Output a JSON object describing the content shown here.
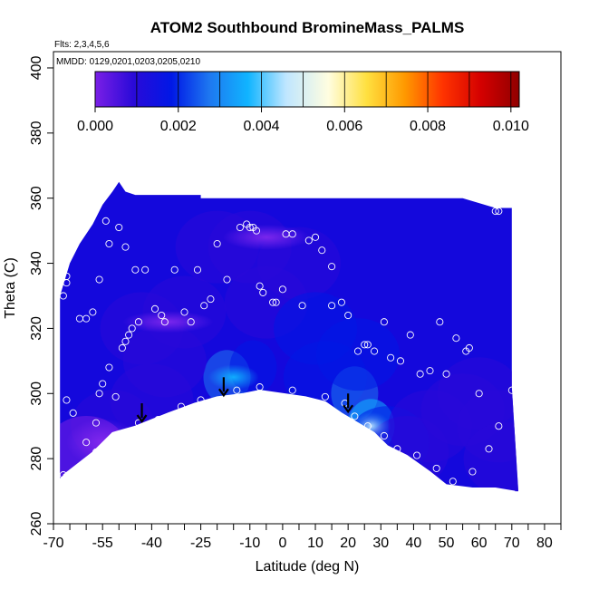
{
  "chart_data": {
    "type": "heatmap",
    "title": "ATOM2 Southbound BromineMass_PALMS",
    "flights_note": "Flts: 2,3,4,5,6",
    "dates_note": "MMDD: 0129,0201,0203,0205,0210",
    "xlabel": "Latitude (deg N)",
    "ylabel": "Theta (C)",
    "xlim": [
      -70,
      85
    ],
    "ylim": [
      260,
      405
    ],
    "x_ticks": [
      -70,
      -55,
      -40,
      -25,
      -10,
      0,
      10,
      20,
      30,
      40,
      50,
      60,
      70,
      80
    ],
    "y_ticks": [
      260,
      280,
      300,
      320,
      340,
      360,
      380,
      400
    ],
    "colorbar": {
      "min": 0.0,
      "max": 0.0102,
      "ticks": [
        0.0,
        0.002,
        0.004,
        0.006,
        0.008,
        0.01
      ],
      "tick_labels": [
        "0.000",
        "0.002",
        "0.004",
        "0.006",
        "0.008",
        "0.010"
      ],
      "colors": [
        "#7a1fe6",
        "#2a0ad8",
        "#0018e6",
        "#1e78f0",
        "#10b4ff",
        "#bfe6ff",
        "#fffde0",
        "#ffe040",
        "#ff9900",
        "#ff3300",
        "#d40000",
        "#900000"
      ]
    },
    "arrows_latitude": [
      -43,
      -18,
      20
    ],
    "ground_outline": [
      [
        -67,
        275
      ],
      [
        -58,
        282
      ],
      [
        -52,
        288
      ],
      [
        -45,
        290
      ],
      [
        -40,
        292
      ],
      [
        -35,
        294
      ],
      [
        -27,
        297
      ],
      [
        -20,
        299
      ],
      [
        -12,
        300
      ],
      [
        -7,
        301
      ],
      [
        0,
        300
      ],
      [
        7,
        299
      ],
      [
        13,
        297.5
      ],
      [
        18,
        294
      ],
      [
        23,
        291
      ],
      [
        28,
        288
      ],
      [
        32,
        284
      ],
      [
        38,
        281
      ],
      [
        45,
        276
      ],
      [
        50,
        272
      ],
      [
        58,
        271
      ],
      [
        65,
        271
      ],
      [
        71,
        270
      ]
    ],
    "cells": [
      {
        "lat": -52,
        "theta": 290,
        "value": 0.0006
      },
      {
        "lat": -60,
        "theta": 282,
        "value": 0.0004
      },
      {
        "lat": -43,
        "theta": 320,
        "value": 0.0006
      },
      {
        "lat": -30,
        "theta": 325,
        "value": 0.0008
      },
      {
        "lat": -20,
        "theta": 345,
        "value": 0.0007
      },
      {
        "lat": -10,
        "theta": 345,
        "value": 0.0005
      },
      {
        "lat": -5,
        "theta": 328,
        "value": 0.0006
      },
      {
        "lat": 5,
        "theta": 340,
        "value": 0.0006
      },
      {
        "lat": -17,
        "theta": 305,
        "value": 0.0028
      },
      {
        "lat": -9,
        "theta": 308,
        "value": 0.0022
      },
      {
        "lat": 10,
        "theta": 320,
        "value": 0.0016
      },
      {
        "lat": 13,
        "theta": 305,
        "value": 0.0014
      },
      {
        "lat": 22,
        "theta": 300,
        "value": 0.0024
      },
      {
        "lat": 27,
        "theta": 290,
        "value": 0.0038
      },
      {
        "lat": 32,
        "theta": 285,
        "value": 0.002
      },
      {
        "lat": 38,
        "theta": 282,
        "value": 0.0012
      },
      {
        "lat": 23,
        "theta": 312,
        "value": 0.0017
      },
      {
        "lat": -40,
        "theta": 298,
        "value": 0.0009
      },
      {
        "lat": -36,
        "theta": 310,
        "value": 0.001
      },
      {
        "lat": 45,
        "theta": 290,
        "value": 0.001
      },
      {
        "lat": 55,
        "theta": 295,
        "value": 0.0011
      },
      {
        "lat": 60,
        "theta": 300,
        "value": 0.0012
      },
      {
        "lat": 66,
        "theta": 290,
        "value": 0.001
      },
      {
        "lat": 68,
        "theta": 280,
        "value": 0.0009
      }
    ],
    "sample_points": [
      [
        -67,
        330
      ],
      [
        -66,
        336
      ],
      [
        -66,
        334
      ],
      [
        -62,
        323
      ],
      [
        -60,
        323
      ],
      [
        -58,
        325
      ],
      [
        -56,
        335
      ],
      [
        -54,
        353
      ],
      [
        -53,
        346
      ],
      [
        -50,
        351
      ],
      [
        -48,
        345
      ],
      [
        -45,
        338
      ],
      [
        -42,
        338
      ],
      [
        -39,
        326
      ],
      [
        -37,
        324
      ],
      [
        -36,
        322
      ],
      [
        -33,
        338
      ],
      [
        -30,
        325
      ],
      [
        -28,
        322
      ],
      [
        -26,
        338
      ],
      [
        -24,
        327
      ],
      [
        -22,
        329
      ],
      [
        -20,
        346
      ],
      [
        -17,
        335
      ],
      [
        -13,
        351
      ],
      [
        -11,
        352
      ],
      [
        -10,
        351
      ],
      [
        -9,
        351
      ],
      [
        -8,
        350
      ],
      [
        -7,
        333
      ],
      [
        -6,
        331
      ],
      [
        -3,
        328
      ],
      [
        0,
        332
      ],
      [
        -2,
        328
      ],
      [
        1,
        349
      ],
      [
        3,
        349
      ],
      [
        6,
        327
      ],
      [
        8,
        347
      ],
      [
        10,
        348
      ],
      [
        12,
        344
      ],
      [
        15,
        339
      ],
      [
        15,
        327
      ],
      [
        18,
        328
      ],
      [
        20,
        324
      ],
      [
        23,
        313
      ],
      [
        25,
        315
      ],
      [
        26,
        315
      ],
      [
        28,
        313
      ],
      [
        31,
        322
      ],
      [
        33,
        311
      ],
      [
        36,
        310
      ],
      [
        39,
        318
      ],
      [
        42,
        306
      ],
      [
        45,
        307
      ],
      [
        48,
        322
      ],
      [
        50,
        306
      ],
      [
        53,
        317
      ],
      [
        56,
        313
      ],
      [
        57,
        314
      ],
      [
        60,
        300
      ],
      [
        65,
        356
      ],
      [
        66,
        356
      ],
      [
        -48,
        316
      ],
      [
        -47,
        318
      ],
      [
        -46,
        320
      ],
      [
        -44,
        322
      ],
      [
        -49,
        314
      ],
      [
        -51,
        299
      ],
      [
        -53,
        308
      ],
      [
        -55,
        303
      ],
      [
        -56,
        300
      ],
      [
        -57,
        291
      ],
      [
        -60,
        285
      ],
      [
        -64,
        294
      ],
      [
        -66,
        298
      ],
      [
        -67,
        275
      ],
      [
        -57,
        282
      ],
      [
        -50,
        287
      ],
      [
        -44,
        291
      ],
      [
        -38,
        292
      ],
      [
        -31,
        296
      ],
      [
        -25,
        298
      ],
      [
        -14,
        301
      ],
      [
        -7,
        302
      ],
      [
        3,
        301
      ],
      [
        13,
        299
      ],
      [
        19,
        297
      ],
      [
        22,
        293
      ],
      [
        26,
        290
      ],
      [
        31,
        287
      ],
      [
        35,
        283
      ],
      [
        41,
        281
      ],
      [
        47,
        277
      ],
      [
        52,
        273
      ],
      [
        58,
        276
      ],
      [
        63,
        283
      ],
      [
        66,
        290
      ],
      [
        70,
        301
      ]
    ]
  }
}
